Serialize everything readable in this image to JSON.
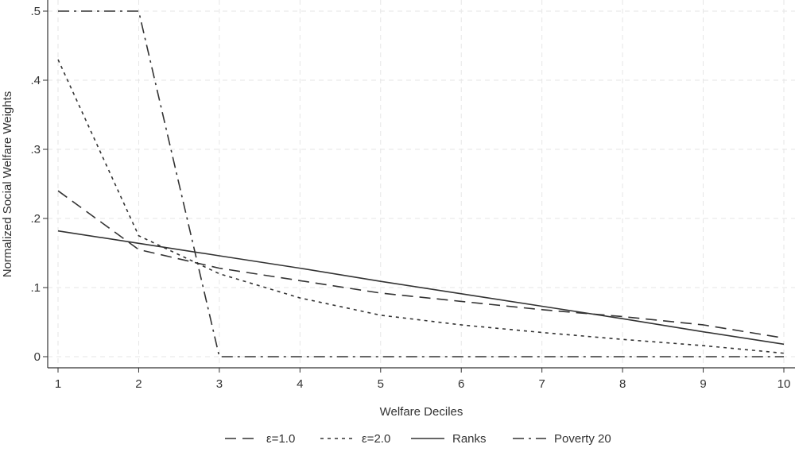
{
  "chart_data": {
    "type": "line",
    "title": "",
    "xlabel": "Welfare Deciles",
    "ylabel": "Normalized Social Welfare Weights",
    "x": [
      1,
      2,
      3,
      4,
      5,
      6,
      7,
      8,
      9,
      10
    ],
    "xticks": [
      "1",
      "2",
      "3",
      "4",
      "5",
      "6",
      "7",
      "8",
      "9",
      "10"
    ],
    "yticks": [
      {
        "value": 0,
        "label": "0"
      },
      {
        "value": 0.1,
        "label": ".1"
      },
      {
        "value": 0.2,
        "label": ".2"
      },
      {
        "value": 0.3,
        "label": ".3"
      },
      {
        "value": 0.4,
        "label": ".4"
      },
      {
        "value": 0.5,
        "label": ".5"
      }
    ],
    "xlim": [
      1,
      10
    ],
    "ylim": [
      0,
      0.5
    ],
    "grid": true,
    "legend_position": "bottom",
    "series": [
      {
        "name": "ε=1.0",
        "style": "dashed",
        "color": "#333333",
        "values": [
          0.24,
          0.155,
          0.128,
          0.11,
          0.092,
          0.08,
          0.068,
          0.058,
          0.046,
          0.027
        ]
      },
      {
        "name": "ε=2.0",
        "style": "dotted",
        "color": "#333333",
        "values": [
          0.43,
          0.175,
          0.12,
          0.085,
          0.06,
          0.046,
          0.035,
          0.025,
          0.016,
          0.005
        ]
      },
      {
        "name": "Ranks",
        "style": "solid",
        "color": "#333333",
        "values": [
          0.182,
          0.164,
          0.146,
          0.128,
          0.109,
          0.091,
          0.073,
          0.055,
          0.036,
          0.018
        ]
      },
      {
        "name": "Poverty 20",
        "style": "dashdot",
        "color": "#333333",
        "values": [
          0.5,
          0.5,
          0,
          0,
          0,
          0,
          0,
          0,
          0,
          0
        ]
      }
    ]
  }
}
